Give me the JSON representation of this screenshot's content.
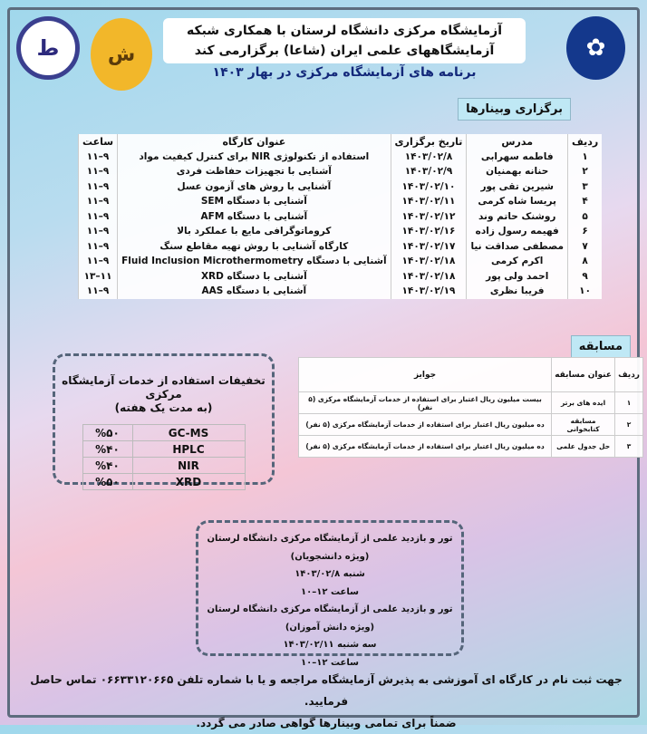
{
  "header": {
    "title_line1": "آزمایشگاه مرکزی دانشگاه لرستان با همکاری شبکه",
    "title_line2": "آزمایشگاههای علمی ایران (شاعا) برگزارمی کند",
    "subtitle": "برنامه های آزمایشگاه مرکزی در بهار ۱۴۰۳",
    "logos": {
      "left": "آزمایشگاه مرکزی دانشگاه لرستان",
      "middle": "شاعا",
      "right": "دانشگاه لرستان"
    }
  },
  "colors": {
    "title_blue": "#13287a",
    "tab_bg": "#bfe8f5",
    "frame": "#5d6c7e"
  },
  "webinars": {
    "tab": "برگزاری وبینارها",
    "headers": [
      "ردیف",
      "مدرس",
      "تاریخ برگزاری",
      "عنوان کارگاه",
      "ساعت"
    ],
    "rows": [
      [
        "۱",
        "فاطمه سهرابی",
        "۱۴۰۳/۰۲/۸",
        "استفاده از تکنولوژی NIR برای کنترل کیفیت مواد",
        "۹–۱۱"
      ],
      [
        "۲",
        "حنانه بهمنیان",
        "۱۴۰۳/۰۲/۹",
        "آشنایی با تجهیزات حفاظت فردی",
        "۹–۱۱"
      ],
      [
        "۳",
        "شیرین تقی پور",
        "۱۴۰۳/۰۲/۱۰",
        "آشنایی با روش های آزمون عسل",
        "۹–۱۱"
      ],
      [
        "۴",
        "پریسا شاه کرمی",
        "۱۴۰۳/۰۲/۱۱",
        "آشنایی با دستگاه SEM",
        "۹–۱۱"
      ],
      [
        "۵",
        "روشنک حاتم وند",
        "۱۴۰۳/۰۲/۱۲",
        "آشنایی با دستگاه AFM",
        "۹–۱۱"
      ],
      [
        "۶",
        "فهیمه رسول زاده",
        "۱۴۰۳/۰۲/۱۶",
        "کروماتوگرافی مایع با عملکرد بالا",
        "۹–۱۱"
      ],
      [
        "۷",
        "مصطفی صداقت نیا",
        "۱۴۰۳/۰۲/۱۷",
        "کارگاه آشنایی با روش تهیه مقاطع سنگ",
        "۹–۱۱"
      ],
      [
        "۸",
        "اکرم کرمی",
        "۱۴۰۳/۰۲/۱۸",
        "آشنایی با دستگاه Fluid Inclusion Microthermometry",
        "۹–۱۱"
      ],
      [
        "۹",
        "احمد ولی پور",
        "۱۴۰۳/۰۲/۱۸",
        "آشنایی با دستگاه XRD",
        "۱۱–۱۳"
      ],
      [
        "۱۰",
        "فریبا نظری",
        "۱۴۰۳/۰۲/۱۹",
        "آشنایی با دستگاه AAS",
        "۹–۱۱"
      ]
    ]
  },
  "competition": {
    "tab": "مسابقه",
    "headers": [
      "ردیف",
      "عنوان مسابقه",
      "جوایز"
    ],
    "rows": [
      [
        "۱",
        "ایده های برتر",
        "بیست میلیون ریال اعتبار برای استفاده از خدمات آزمایشگاه مرکزی (۵ نفر)"
      ],
      [
        "۲",
        "مسابقه کتابخوانی",
        "ده میلیون ریال اعتبار برای استفاده از خدمات آزمایشگاه مرکزی (۵ نفر)"
      ],
      [
        "۳",
        "حل جدول علمی",
        "ده میلیون ریال اعتبار برای استفاده از خدمات آزمایشگاه مرکزی (۵ نفر)"
      ]
    ]
  },
  "discounts": {
    "title": "تخفیفات استفاده از خدمات آزمایشگاه مرکزی",
    "subtitle": "(به مدت یک هفته)",
    "rows": [
      [
        "GC-MS",
        "%۵۰"
      ],
      [
        "HPLC",
        "%۴۰"
      ],
      [
        "NIR",
        "%۴۰"
      ],
      [
        "XRD",
        "%۵۰"
      ]
    ]
  },
  "tour": {
    "lines": [
      "تور و بازدید علمی از آزمایشگاه مرکزی دانشگاه لرستان (ویژه دانشجویان)",
      "شنبه ۱۴۰۳/۰۲/۸",
      "ساعت ۱۲–۱۰",
      "تور و بازدید علمی از آزمایشگاه مرکزی دانشگاه لرستان (ویژه دانش آموزان)",
      "سه شنبه ۱۴۰۳/۰۲/۱۱",
      "ساعت ۱۲–۱۰"
    ]
  },
  "footer": {
    "line1": "جهت ثبت نام در کارگاه ای آموزشی به پذیرش آزمایشگاه مراجعه و یا با شماره تلفن ۰۶۶۳۳۱۲۰۶۶۵ تماس حاصل فرمایید.",
    "line2": "ضمناً برای تمامی وبینارها گواهی صادر می گردد."
  }
}
